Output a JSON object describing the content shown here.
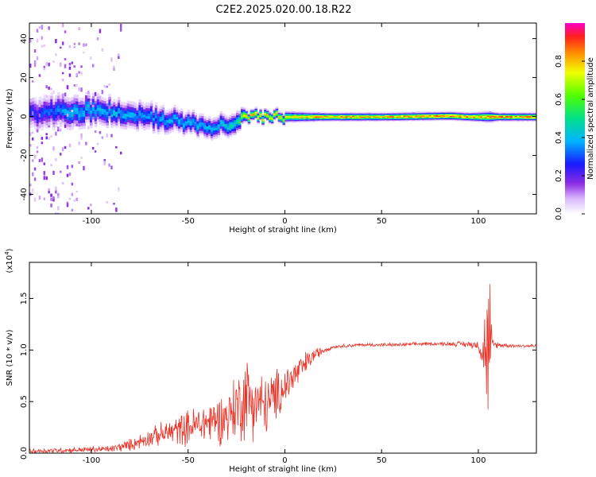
{
  "title": "C2E2.2025.020.00.18.R22",
  "chart_data": [
    {
      "type": "heatmap",
      "xlabel": "Height of straight line (km)",
      "ylabel": "Frequency (Hz)",
      "xlim": [
        -132,
        130
      ],
      "ylim": [
        -50,
        48
      ],
      "xticks": [
        -100,
        -50,
        0,
        50,
        100
      ],
      "yticks": [
        -40,
        -20,
        0,
        20,
        40
      ],
      "colorbar": {
        "label": "Normalized spectral amplitude",
        "range": [
          0,
          1
        ],
        "ticks": [
          0.0,
          0.2,
          0.4,
          0.6,
          0.8
        ]
      },
      "ridge": {
        "x": [
          -130,
          -110,
          -90,
          -70,
          -50,
          -35,
          -25,
          -20,
          -10,
          0,
          20,
          50,
          85,
          95,
          105,
          110,
          130
        ],
        "center_freq": [
          2,
          3,
          3,
          0,
          -3,
          -5,
          -2,
          0,
          0,
          0,
          0,
          0,
          0.5,
          0,
          0,
          0,
          0
        ],
        "amplitude": [
          0.3,
          0.45,
          0.45,
          0.4,
          0.45,
          0.45,
          0.55,
          0.9,
          0.85,
          0.8,
          0.95,
          0.9,
          1.0,
          0.95,
          0.9,
          0.95,
          0.95
        ],
        "spread": [
          6,
          6,
          5,
          5,
          4,
          4,
          4,
          2,
          2,
          2,
          1.5,
          1.5,
          1.5,
          1.5,
          2,
          1.5,
          1.5
        ]
      }
    },
    {
      "type": "line",
      "xlabel": "Height of straight line (km)",
      "ylabel": "SNR (10 * v/v)",
      "yscale_label": "(x10^4)",
      "xlim": [
        -132,
        130
      ],
      "ylim": [
        0,
        1.85
      ],
      "xticks": [
        -100,
        -50,
        0,
        50,
        100
      ],
      "yticks": [
        0.0,
        0.5,
        1.0,
        1.5
      ],
      "series": [
        {
          "color": "#e8352a",
          "x": [
            -132,
            -110,
            -90,
            -80,
            -70,
            -60,
            -50,
            -40,
            -30,
            -25,
            -20,
            -15,
            -10,
            -5,
            0,
            5,
            10,
            15,
            20,
            25,
            30,
            40,
            50,
            60,
            70,
            80,
            90,
            100,
            103,
            105,
            106,
            107,
            110,
            120,
            130
          ],
          "mean": [
            0.02,
            0.03,
            0.04,
            0.08,
            0.15,
            0.2,
            0.25,
            0.3,
            0.35,
            0.45,
            0.55,
            0.5,
            0.45,
            0.55,
            0.65,
            0.75,
            0.85,
            0.95,
            1.0,
            1.03,
            1.04,
            1.05,
            1.05,
            1.05,
            1.06,
            1.06,
            1.06,
            1.05,
            1.0,
            1.0,
            1.0,
            1.05,
            1.05,
            1.04,
            1.04
          ],
          "noise": [
            0.03,
            0.03,
            0.04,
            0.07,
            0.1,
            0.15,
            0.2,
            0.25,
            0.3,
            0.4,
            0.5,
            0.4,
            0.35,
            0.3,
            0.25,
            0.2,
            0.15,
            0.08,
            0.04,
            0.02,
            0.02,
            0.02,
            0.02,
            0.02,
            0.02,
            0.02,
            0.03,
            0.05,
            0.4,
            0.8,
            0.9,
            0.1,
            0.03,
            0.02,
            0.02
          ]
        }
      ]
    }
  ]
}
